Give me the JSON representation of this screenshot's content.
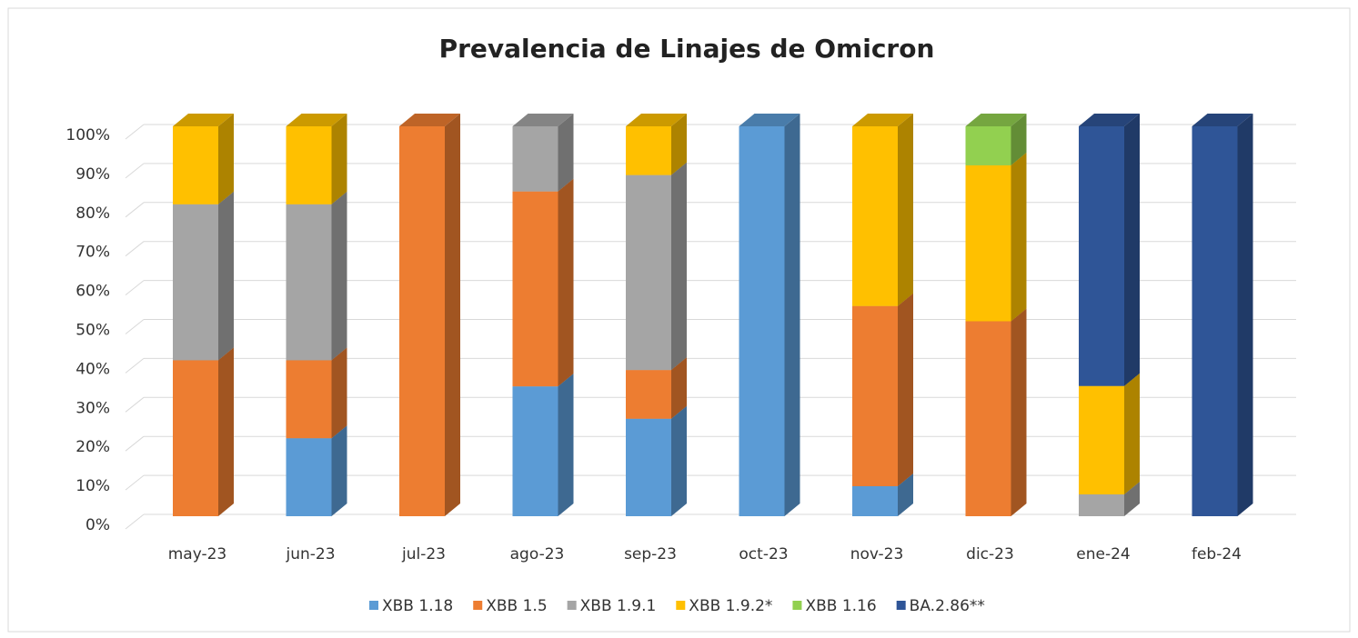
{
  "chart_data": {
    "type": "bar",
    "stacked": true,
    "title": "Prevalencia de Linajes de Omicron",
    "categories": [
      "may-23",
      "jun-23",
      "jul-23",
      "ago-23",
      "sep-23",
      "oct-23",
      "nov-23",
      "dic-23",
      "ene-24",
      "feb-24"
    ],
    "series": [
      {
        "name": "XBB 1.18",
        "color": "#5b9bd5",
        "values": [
          0,
          20,
          0,
          33.3,
          25,
          100,
          7.7,
          0,
          0,
          0
        ]
      },
      {
        "name": "XBB 1.5",
        "color": "#ed7d31",
        "values": [
          40,
          20,
          100,
          50,
          12.5,
          0,
          46.2,
          50,
          0,
          0
        ]
      },
      {
        "name": "XBB 1.9.1",
        "color": "#a5a5a5",
        "values": [
          40,
          40,
          0,
          16.7,
          50,
          0,
          0,
          0,
          5.6,
          0
        ]
      },
      {
        "name": "XBB 1.9.2*",
        "color": "#ffc000",
        "values": [
          20,
          20,
          0,
          0,
          12.5,
          0,
          46.1,
          40,
          27.8,
          0
        ]
      },
      {
        "name": "XBB 1.16",
        "color": "#92d050",
        "values": [
          0,
          0,
          0,
          0,
          0,
          0,
          0,
          10,
          0,
          0
        ]
      },
      {
        "name": "BA.2.86**",
        "color": "#2f5597",
        "values": [
          0,
          0,
          0,
          0,
          0,
          0,
          0,
          0,
          66.6,
          100
        ]
      }
    ],
    "ylim": [
      0,
      100
    ],
    "yticks": [
      {
        "value": 0,
        "label": "0%"
      },
      {
        "value": 10,
        "label": "10%"
      },
      {
        "value": 20,
        "label": "20%"
      },
      {
        "value": 30,
        "label": "30%"
      },
      {
        "value": 40,
        "label": "40%"
      },
      {
        "value": 50,
        "label": "50%"
      },
      {
        "value": 60,
        "label": "60%"
      },
      {
        "value": 70,
        "label": "70%"
      },
      {
        "value": 80,
        "label": "80%"
      },
      {
        "value": 90,
        "label": "90%"
      },
      {
        "value": 100,
        "label": "100%"
      }
    ],
    "grid": true,
    "legend": "bottom"
  }
}
